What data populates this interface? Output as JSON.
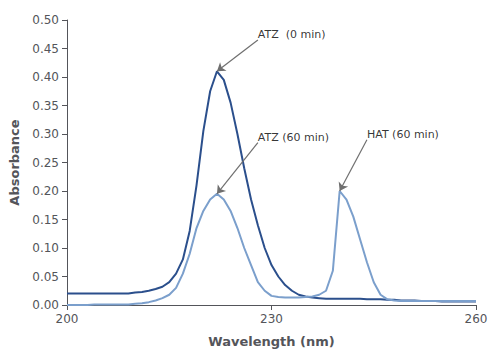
{
  "chart_data": {
    "type": "line",
    "title": "",
    "xlabel": "Wavelength (nm)",
    "ylabel": "Absorbance",
    "xlim": [
      200,
      260
    ],
    "ylim": [
      0,
      0.5
    ],
    "xticks": [
      200,
      230,
      260
    ],
    "yticks": [
      {
        "value": 0,
        "label": "0.00"
      },
      {
        "value": 0.05,
        "label": "0.05"
      },
      {
        "value": 0.1,
        "label": "0.10"
      },
      {
        "value": 0.15,
        "label": "0.15"
      },
      {
        "value": 0.2,
        "label": "0.20"
      },
      {
        "value": 0.25,
        "label": "0.25"
      },
      {
        "value": 0.3,
        "label": "0.30"
      },
      {
        "value": 0.35,
        "label": "0.35"
      },
      {
        "value": 0.4,
        "label": "0.40"
      },
      {
        "value": 0.45,
        "label": "0.45"
      },
      {
        "value": 0.5,
        "label": "0.50"
      }
    ],
    "grid": false,
    "x": [
      200,
      201,
      202,
      203,
      204,
      205,
      206,
      207,
      208,
      209,
      210,
      211,
      212,
      213,
      214,
      215,
      216,
      217,
      218,
      219,
      220,
      221,
      222,
      223,
      224,
      225,
      226,
      227,
      228,
      229,
      230,
      231,
      232,
      233,
      234,
      235,
      236,
      237,
      238,
      239,
      240,
      241,
      242,
      243,
      244,
      245,
      246,
      247,
      248,
      249,
      250,
      251,
      252,
      253,
      254,
      255,
      256,
      257,
      258,
      259,
      260
    ],
    "series": [
      {
        "color": "#2B4F8C",
        "values": [
          0.02,
          0.02,
          0.02,
          0.02,
          0.02,
          0.02,
          0.02,
          0.02,
          0.02,
          0.02,
          0.022,
          0.023,
          0.025,
          0.028,
          0.032,
          0.04,
          0.055,
          0.08,
          0.13,
          0.21,
          0.305,
          0.375,
          0.41,
          0.395,
          0.355,
          0.3,
          0.24,
          0.185,
          0.14,
          0.1,
          0.07,
          0.05,
          0.035,
          0.025,
          0.018,
          0.015,
          0.013,
          0.012,
          0.011,
          0.011,
          0.011,
          0.011,
          0.011,
          0.011,
          0.01,
          0.01,
          0.01,
          0.009,
          0.009,
          0.008,
          0.008,
          0.008,
          0.007,
          0.007,
          0.007,
          0.006,
          0.006,
          0.006,
          0.006,
          0.006,
          0.006
        ]
      },
      {
        "color": "#7B9FCC",
        "values": [
          0.0,
          0.0,
          0.0,
          0.0,
          0.001,
          0.001,
          0.001,
          0.001,
          0.001,
          0.001,
          0.002,
          0.003,
          0.005,
          0.008,
          0.012,
          0.018,
          0.03,
          0.055,
          0.09,
          0.135,
          0.165,
          0.185,
          0.195,
          0.185,
          0.165,
          0.135,
          0.1,
          0.07,
          0.04,
          0.025,
          0.016,
          0.014,
          0.013,
          0.013,
          0.013,
          0.014,
          0.015,
          0.018,
          0.025,
          0.06,
          0.2,
          0.185,
          0.155,
          0.115,
          0.075,
          0.04,
          0.018,
          0.01,
          0.008,
          0.007,
          0.007,
          0.007,
          0.007,
          0.007,
          0.007,
          0.007,
          0.007,
          0.007,
          0.007,
          0.007,
          0.007
        ]
      }
    ],
    "annotations": [
      {
        "text": "ATZ  (0 min)",
        "xy": [
          222,
          0.41
        ],
        "xytext": [
          228,
          0.465
        ]
      },
      {
        "text": "ATZ (60 min)",
        "xy": [
          222,
          0.195
        ],
        "xytext": [
          228,
          0.285
        ]
      },
      {
        "text": "HAT (60 min)",
        "xy": [
          240,
          0.2
        ],
        "xytext": [
          244,
          0.29
        ]
      }
    ]
  }
}
